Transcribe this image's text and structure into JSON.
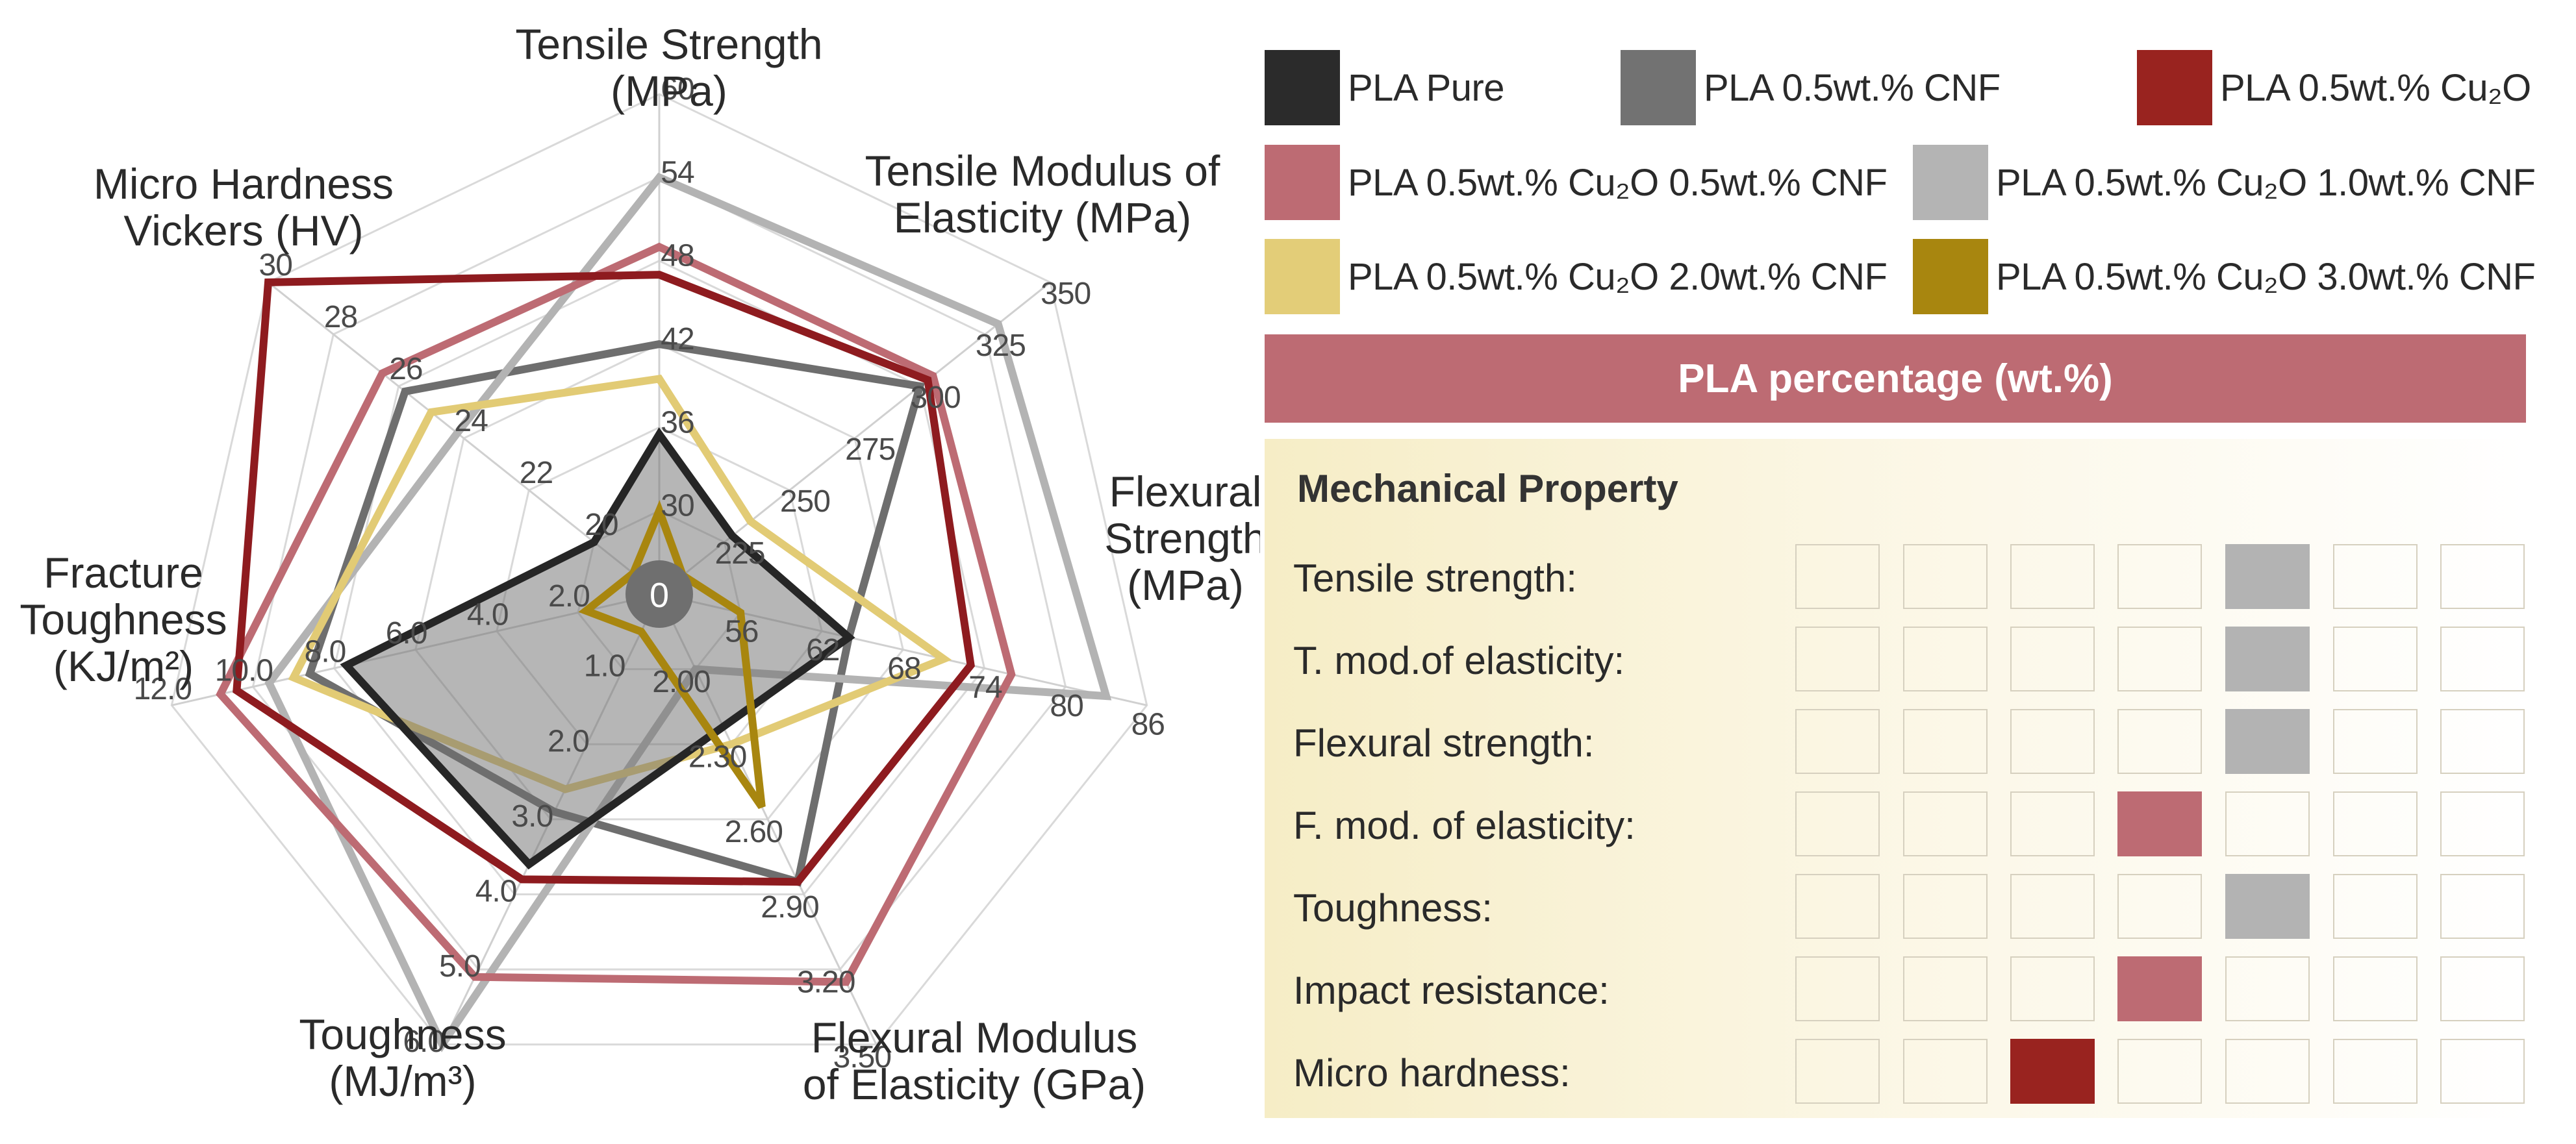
{
  "chart_data": {
    "type": "radar",
    "title": "",
    "axes": [
      {
        "label_lines": [
          "Tensile Strength",
          "(MPa)"
        ],
        "ticks": [
          "30",
          "36",
          "42",
          "48",
          "54",
          "60"
        ],
        "range": [
          24,
          60
        ]
      },
      {
        "label_lines": [
          "Tensile Modulus of",
          "Elasticity (MPa)"
        ],
        "ticks": [
          "225",
          "250",
          "275",
          "300",
          "325",
          "350"
        ],
        "range": [
          200,
          350
        ]
      },
      {
        "label_lines": [
          "Flexural",
          "Strength",
          "(MPa)"
        ],
        "ticks": [
          "56",
          "62",
          "68",
          "74",
          "80",
          "86"
        ],
        "range": [
          50,
          86
        ]
      },
      {
        "label_lines": [
          "Flexural Modulus",
          "of Elasticity (GPa)"
        ],
        "ticks": [
          "2.00",
          "2.30",
          "2.60",
          "2.90",
          "3.20",
          "3.50"
        ],
        "range": [
          1.7,
          3.5
        ]
      },
      {
        "label_lines": [
          "Toughness",
          "(MJ/m³)"
        ],
        "ticks": [
          "1.0",
          "2.0",
          "3.0",
          "4.0",
          "5.0",
          "6.0"
        ],
        "range": [
          0,
          6
        ]
      },
      {
        "label_lines": [
          "Fracture",
          "Toughness",
          "(KJ/m²)"
        ],
        "ticks": [
          "2.0",
          "4.0",
          "6.0",
          "8.0",
          "10.0",
          "12.0"
        ],
        "range": [
          0,
          12
        ]
      },
      {
        "label_lines": [
          "Micro Hardness",
          "Vickers (HV)"
        ],
        "ticks": [
          "20",
          "22",
          "24",
          "26",
          "28",
          "30"
        ],
        "range": [
          18,
          30
        ]
      }
    ],
    "center_label": "0",
    "series": [
      {
        "name": "PLA 0.5wt.% CNF",
        "color": "#6e6e6e",
        "values": [
          42,
          300,
          64,
          2.85,
          2.9,
          8.6,
          25.8
        ]
      },
      {
        "name": "PLA 0.5wt.% Cu₂O 1.0wt.% CNF",
        "color": "#b3b3b3",
        "values": [
          54,
          330,
          83,
          2.0,
          6.0,
          9.6,
          24.2
        ]
      },
      {
        "name": "PLA 0.5wt.% Cu₂O 0.5wt.% CNF",
        "color": "#bd6b73",
        "values": [
          49,
          305,
          76,
          3.25,
          5.1,
          10.8,
          26.5
        ]
      },
      {
        "name": "PLA 0.5wt.% Cu₂O",
        "color": "#8e1b1f",
        "values": [
          47,
          303,
          73,
          2.85,
          3.8,
          10.4,
          30.0
        ]
      },
      {
        "name": "PLA 0.5wt.% Cu₂O 2.0wt.% CNF",
        "color": "#e2cb75",
        "values": [
          39.5,
          235,
          71,
          2.3,
          2.6,
          9.0,
          25.0
        ]
      },
      {
        "name": "PLA Pure",
        "color": "#262626",
        "values": [
          35.5,
          228,
          64,
          2.23,
          3.6,
          7.7,
          20.0
        ]
      },
      {
        "name": "PLA 0.5wt.% Cu₂O 3.0wt.% CNF",
        "color": "#a8860f",
        "values": [
          30,
          208,
          56,
          2.55,
          0.5,
          1.8,
          18.8
        ]
      }
    ]
  },
  "legend": [
    {
      "label": "PLA Pure",
      "color": "#2b2b2b"
    },
    {
      "label": "PLA 0.5wt.% CNF",
      "color": "#727272"
    },
    {
      "label": "PLA 0.5wt.% Cu₂O",
      "color": "#99231f"
    },
    {
      "label": "PLA 0.5wt.% Cu₂O 0.5wt.% CNF",
      "color": "#bd6b73"
    },
    {
      "label": "PLA 0.5wt.% Cu₂O 1.0wt.% CNF",
      "color": "#b4b4b4"
    },
    {
      "label": "PLA 0.5wt.% Cu₂O 2.0wt.% CNF",
      "color": "#e3cd78"
    },
    {
      "label": "PLA 0.5wt.% Cu₂O 3.0wt.% CNF",
      "color": "#a8860f"
    }
  ],
  "banner": "PLA percentage (wt.%)",
  "property_table": {
    "title": "Mechanical Property",
    "columns": 7,
    "rows": [
      {
        "label": "Tensile strength:",
        "best_column": 5,
        "color": "#b3b3b3"
      },
      {
        "label": "T. mod.of elasticity:",
        "best_column": 5,
        "color": "#b3b3b3"
      },
      {
        "label": "Flexural strength:",
        "best_column": 5,
        "color": "#b3b3b3"
      },
      {
        "label": "F. mod. of elasticity:",
        "best_column": 4,
        "color": "#bd6b73"
      },
      {
        "label": "Toughness:",
        "best_column": 5,
        "color": "#b3b3b3"
      },
      {
        "label": "Impact resistance:",
        "best_column": 4,
        "color": "#bd6b73"
      },
      {
        "label": "Micro hardness:",
        "best_column": 3,
        "color": "#99231f"
      }
    ]
  }
}
